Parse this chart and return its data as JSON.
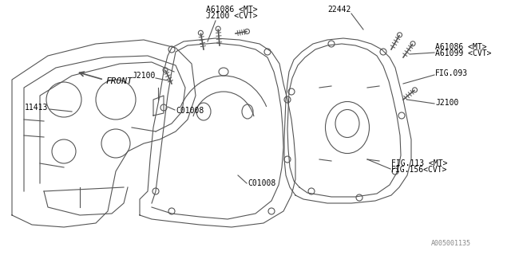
{
  "title": "",
  "bg_color": "#ffffff",
  "line_color": "#555555",
  "text_color": "#000000",
  "part_number": "A005001135",
  "labels": {
    "A61086_MT_top": "A61086 <MT>",
    "J2100_CVT_top": "J2100 <CVT>",
    "J2100_left": "J2100",
    "22442": "22442",
    "A61086_MT_right": "A61086 <MT>",
    "A61099_CVT": "A61099 <CVT>",
    "FIG093": "FIG.093",
    "J2100_right": "J2100",
    "FIG113_MT": "FIG.113 <MT>",
    "FIG156_CVT": "FIG.156<CVT>",
    "C01008_left": "C01008",
    "C01008_bottom": "C01008",
    "I1413": "11413",
    "FRONT": "FRONT"
  },
  "font_size": 7,
  "lw": 0.8
}
